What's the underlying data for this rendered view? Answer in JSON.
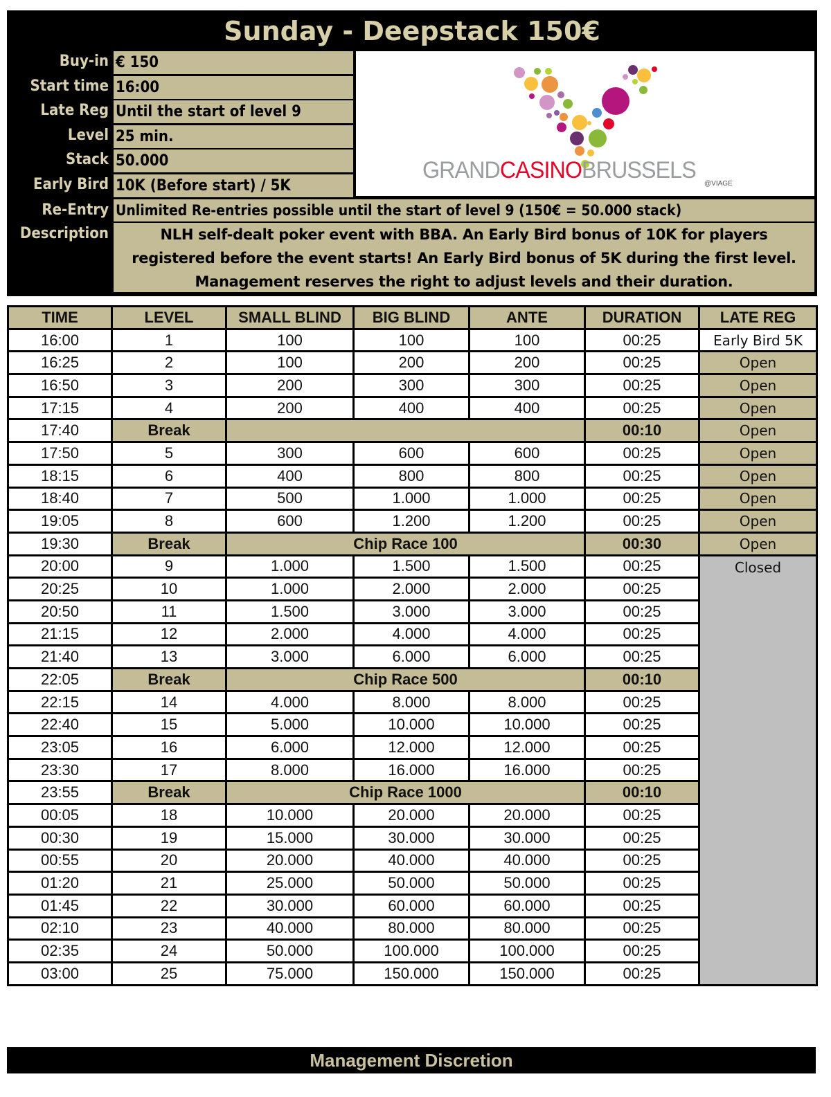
{
  "title": "Sunday -  Deepstack 150€",
  "info": [
    {
      "label": "Buy-in",
      "value": "€ 150"
    },
    {
      "label": "Start time",
      "value": "16:00"
    },
    {
      "label": "Late Reg",
      "value": "Until the start of level 9"
    },
    {
      "label": "Level",
      "value": "25 min."
    },
    {
      "label": "Stack",
      "value": "50.000"
    },
    {
      "label": "Early Bird",
      "value": "10K (Before start) / 5K"
    }
  ],
  "reentry": {
    "label": "Re-Entry",
    "value": "Unlimited Re-entries possible until the start of level 9 (150€ = 50.000 stack)"
  },
  "description": {
    "label": "Description",
    "value": "NLH self-dealt poker event with BBA. An Early Bird bonus of 10K for players registered before the event starts! An Early Bird bonus of 5K during the first level. Management reserves the right to adjust levels and their duration."
  },
  "logo": {
    "word1": "GRAND",
    "word2": "CASINO",
    "word3": "BRUSSELS",
    "sub": "@VIAGE",
    "colors": {
      "grey": "#9a9c9e",
      "red": "#e2062b"
    }
  },
  "colors": {
    "tan": "#c4bc96",
    "header_text": "#d8d0b0",
    "closed_grey": "#bfbfbf"
  },
  "table": {
    "headers": [
      "TIME",
      "LEVEL",
      "SMALL BLIND",
      "BIG BLIND",
      "ANTE",
      "DURATION",
      "LATE REG"
    ],
    "rows": [
      {
        "time": "16:00",
        "level": "1",
        "sb": "100",
        "bb": "100",
        "ante": "100",
        "duration": "00:25",
        "late_reg": "Early Bird 5K"
      },
      {
        "time": "16:25",
        "level": "2",
        "sb": "100",
        "bb": "200",
        "ante": "200",
        "duration": "00:25",
        "late_reg": "Open"
      },
      {
        "time": "16:50",
        "level": "3",
        "sb": "200",
        "bb": "300",
        "ante": "300",
        "duration": "00:25",
        "late_reg": "Open"
      },
      {
        "time": "17:15",
        "level": "4",
        "sb": "200",
        "bb": "400",
        "ante": "400",
        "duration": "00:25",
        "late_reg": "Open"
      },
      {
        "time": "17:40",
        "break": "Break",
        "note": "",
        "duration": "00:10",
        "late_reg": "Open"
      },
      {
        "time": "17:50",
        "level": "5",
        "sb": "300",
        "bb": "600",
        "ante": "600",
        "duration": "00:25",
        "late_reg": "Open"
      },
      {
        "time": "18:15",
        "level": "6",
        "sb": "400",
        "bb": "800",
        "ante": "800",
        "duration": "00:25",
        "late_reg": "Open"
      },
      {
        "time": "18:40",
        "level": "7",
        "sb": "500",
        "bb": "1.000",
        "ante": "1.000",
        "duration": "00:25",
        "late_reg": "Open"
      },
      {
        "time": "19:05",
        "level": "8",
        "sb": "600",
        "bb": "1.200",
        "ante": "1.200",
        "duration": "00:25",
        "late_reg": "Open"
      },
      {
        "time": "19:30",
        "break": "Break",
        "note": "Chip Race 100",
        "duration": "00:30",
        "late_reg": "Open"
      },
      {
        "time": "20:00",
        "level": "9",
        "sb": "1.000",
        "bb": "1.500",
        "ante": "1.500",
        "duration": "00:25",
        "late_reg": "Closed"
      },
      {
        "time": "20:25",
        "level": "10",
        "sb": "1.000",
        "bb": "2.000",
        "ante": "2.000",
        "duration": "00:25"
      },
      {
        "time": "20:50",
        "level": "11",
        "sb": "1.500",
        "bb": "3.000",
        "ante": "3.000",
        "duration": "00:25"
      },
      {
        "time": "21:15",
        "level": "12",
        "sb": "2.000",
        "bb": "4.000",
        "ante": "4.000",
        "duration": "00:25"
      },
      {
        "time": "21:40",
        "level": "13",
        "sb": "3.000",
        "bb": "6.000",
        "ante": "6.000",
        "duration": "00:25"
      },
      {
        "time": "22:05",
        "break": "Break",
        "note": "Chip Race 500",
        "duration": "00:10"
      },
      {
        "time": "22:15",
        "level": "14",
        "sb": "4.000",
        "bb": "8.000",
        "ante": "8.000",
        "duration": "00:25"
      },
      {
        "time": "22:40",
        "level": "15",
        "sb": "5.000",
        "bb": "10.000",
        "ante": "10.000",
        "duration": "00:25"
      },
      {
        "time": "23:05",
        "level": "16",
        "sb": "6.000",
        "bb": "12.000",
        "ante": "12.000",
        "duration": "00:25"
      },
      {
        "time": "23:30",
        "level": "17",
        "sb": "8.000",
        "bb": "16.000",
        "ante": "16.000",
        "duration": "00:25"
      },
      {
        "time": "23:55",
        "break": "Break",
        "note": "Chip Race 1000",
        "duration": "00:10"
      },
      {
        "time": "00:05",
        "level": "18",
        "sb": "10.000",
        "bb": "20.000",
        "ante": "20.000",
        "duration": "00:25"
      },
      {
        "time": "00:30",
        "level": "19",
        "sb": "15.000",
        "bb": "30.000",
        "ante": "30.000",
        "duration": "00:25"
      },
      {
        "time": "00:55",
        "level": "20",
        "sb": "20.000",
        "bb": "40.000",
        "ante": "40.000",
        "duration": "00:25"
      },
      {
        "time": "01:20",
        "level": "21",
        "sb": "25.000",
        "bb": "50.000",
        "ante": "50.000",
        "duration": "00:25"
      },
      {
        "time": "01:45",
        "level": "22",
        "sb": "30.000",
        "bb": "60.000",
        "ante": "60.000",
        "duration": "00:25"
      },
      {
        "time": "02:10",
        "level": "23",
        "sb": "40.000",
        "bb": "80.000",
        "ante": "80.000",
        "duration": "00:25"
      },
      {
        "time": "02:35",
        "level": "24",
        "sb": "50.000",
        "bb": "100.000",
        "ante": "100.000",
        "duration": "00:25"
      },
      {
        "time": "03:00",
        "level": "25",
        "sb": "75.000",
        "bb": "150.000",
        "ante": "150.000",
        "duration": "00:25"
      }
    ]
  },
  "footer": "Management Discretion"
}
